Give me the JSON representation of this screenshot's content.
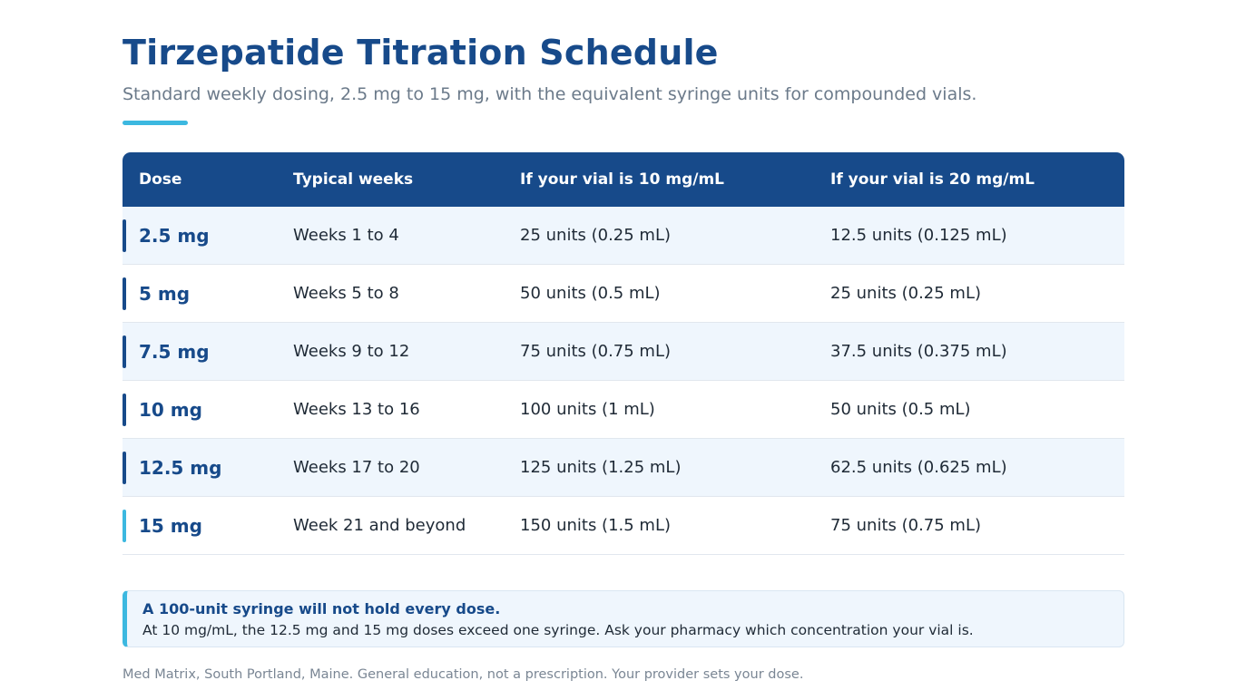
{
  "header": {
    "title": "Tirzepatide Titration Schedule",
    "subtitle": "Standard weekly dosing, 2.5 mg to 15 mg, with the equivalent syringe units for compounded vials."
  },
  "table": {
    "columns": [
      "Dose",
      "Typical weeks",
      "If your vial is 10 mg/mL",
      "If your vial is 20 mg/mL"
    ],
    "rows": [
      {
        "dose": "2.5 mg",
        "weeks": "Weeks 1 to 4",
        "vial10": "25 units (0.25 mL)",
        "vial20": "12.5 units (0.125 mL)"
      },
      {
        "dose": "5 mg",
        "weeks": "Weeks 5 to 8",
        "vial10": "50 units (0.5 mL)",
        "vial20": "25 units (0.25 mL)"
      },
      {
        "dose": "7.5 mg",
        "weeks": "Weeks 9 to 12",
        "vial10": "75 units (0.75 mL)",
        "vial20": "37.5 units (0.375 mL)"
      },
      {
        "dose": "10 mg",
        "weeks": "Weeks 13 to 16",
        "vial10": "100 units (1 mL)",
        "vial20": "50 units (0.5 mL)"
      },
      {
        "dose": "12.5 mg",
        "weeks": "Weeks 17 to 20",
        "vial10": "125 units (1.25 mL)",
        "vial20": "62.5 units (0.625 mL)"
      },
      {
        "dose": "15 mg",
        "weeks": "Week 21 and beyond",
        "vial10": "150 units (1.5 mL)",
        "vial20": "75 units (0.75 mL)"
      }
    ]
  },
  "note": {
    "title": "A 100-unit syringe will not hold every dose.",
    "text": "At 10 mg/mL, the 12.5 mg and 15 mg doses exceed one syringe. Ask your pharmacy which concentration your vial is."
  },
  "footer": {
    "text": "Med Matrix, South Portland, Maine. General education, not a prescription. Your provider sets your dose."
  },
  "colors": {
    "primary": "#174a8a",
    "accent": "#3cb8e0",
    "row_tint": "#eff6fd"
  }
}
